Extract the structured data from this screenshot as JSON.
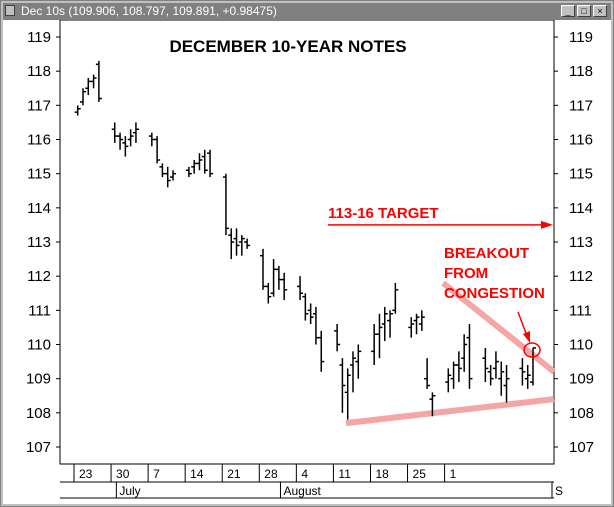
{
  "window": {
    "title": "Dec 10s (109.906, 108.797, 109.891, +0.98475)",
    "icon": "chart-window-icon",
    "buttons": [
      "minimize",
      "maximize",
      "close"
    ]
  },
  "chart_data": {
    "type": "ohlc",
    "title": "DECEMBER 10-YEAR NOTES",
    "y_ticks": [
      107,
      108,
      109,
      110,
      111,
      112,
      113,
      114,
      115,
      116,
      117,
      118,
      119
    ],
    "ylim": [
      106.6,
      119.5
    ],
    "x_ticks": [
      "23",
      "30",
      "7",
      "14",
      "21",
      "28",
      "4",
      "11",
      "18",
      "25",
      "1"
    ],
    "months": [
      "July",
      "August",
      "S"
    ],
    "grid": false,
    "bars": [
      {
        "x": "Jun 22",
        "open": 116.8,
        "high": 117.0,
        "low": 116.7,
        "close": 116.9
      },
      {
        "x": "Jun 23",
        "open": 117.1,
        "high": 117.5,
        "low": 117.0,
        "close": 117.4
      },
      {
        "x": "Jun 24",
        "open": 117.5,
        "high": 117.8,
        "low": 117.3,
        "close": 117.7
      },
      {
        "x": "Jun 25",
        "open": 117.7,
        "high": 117.9,
        "low": 117.5,
        "close": 117.8
      },
      {
        "x": "Jun 26",
        "open": 118.2,
        "high": 118.3,
        "low": 117.1,
        "close": 117.2
      },
      {
        "x": "Jun 29",
        "open": 116.3,
        "high": 116.5,
        "low": 115.9,
        "close": 116.1
      },
      {
        "x": "Jun 30",
        "open": 116.1,
        "high": 116.2,
        "low": 115.7,
        "close": 116.0
      },
      {
        "x": "Jul 1",
        "open": 115.9,
        "high": 116.1,
        "low": 115.5,
        "close": 115.8
      },
      {
        "x": "Jul 2",
        "open": 116.0,
        "high": 116.3,
        "low": 115.8,
        "close": 116.1
      },
      {
        "x": "Jul 3",
        "open": 116.2,
        "high": 116.5,
        "low": 115.9,
        "close": 116.3
      },
      {
        "x": "Jul 6",
        "open": 116.1,
        "high": 116.2,
        "low": 115.8,
        "close": 116.0
      },
      {
        "x": "Jul 7",
        "open": 116.0,
        "high": 116.1,
        "low": 115.3,
        "close": 115.4
      },
      {
        "x": "Jul 8",
        "open": 115.2,
        "high": 115.3,
        "low": 114.9,
        "close": 115.0
      },
      {
        "x": "Jul 9",
        "open": 115.0,
        "high": 115.2,
        "low": 114.6,
        "close": 114.8
      },
      {
        "x": "Jul 10",
        "open": 114.9,
        "high": 115.1,
        "low": 114.8,
        "close": 115.0
      },
      {
        "x": "Jul 13",
        "open": 115.1,
        "high": 115.2,
        "low": 114.9,
        "close": 115.0
      },
      {
        "x": "Jul 14",
        "open": 115.2,
        "high": 115.4,
        "low": 115.0,
        "close": 115.3
      },
      {
        "x": "Jul 15",
        "open": 115.3,
        "high": 115.6,
        "low": 115.1,
        "close": 115.4
      },
      {
        "x": "Jul 16",
        "open": 115.5,
        "high": 115.7,
        "low": 115.0,
        "close": 115.1
      },
      {
        "x": "Jul 17",
        "open": 115.6,
        "high": 115.7,
        "low": 114.9,
        "close": 115.0
      },
      {
        "x": "Jul 20",
        "open": 114.9,
        "high": 115.0,
        "low": 113.2,
        "close": 113.4
      },
      {
        "x": "Jul 21",
        "open": 113.2,
        "high": 113.4,
        "low": 112.5,
        "close": 113.0
      },
      {
        "x": "Jul 22",
        "open": 113.1,
        "high": 113.4,
        "low": 112.6,
        "close": 112.9
      },
      {
        "x": "Jul 23",
        "open": 113.0,
        "high": 113.2,
        "low": 112.6,
        "close": 113.1
      },
      {
        "x": "Jul 24",
        "open": 113.0,
        "high": 113.1,
        "low": 112.8,
        "close": 112.9
      },
      {
        "x": "Jul 27",
        "open": 112.6,
        "high": 112.8,
        "low": 111.6,
        "close": 111.7
      },
      {
        "x": "Jul 28",
        "open": 111.7,
        "high": 111.8,
        "low": 111.2,
        "close": 111.4
      },
      {
        "x": "Jul 29",
        "open": 111.5,
        "high": 112.5,
        "low": 111.4,
        "close": 112.2
      },
      {
        "x": "Jul 30",
        "open": 112.2,
        "high": 112.3,
        "low": 111.6,
        "close": 111.9
      },
      {
        "x": "Jul 31",
        "open": 111.9,
        "high": 112.1,
        "low": 111.3,
        "close": 111.6
      },
      {
        "x": "Aug 3",
        "open": 111.7,
        "high": 112.0,
        "low": 111.3,
        "close": 111.5
      },
      {
        "x": "Aug 4",
        "open": 111.4,
        "high": 111.5,
        "low": 110.7,
        "close": 110.9
      },
      {
        "x": "Aug 5",
        "open": 111.0,
        "high": 111.2,
        "low": 110.6,
        "close": 110.8
      },
      {
        "x": "Aug 6",
        "open": 110.9,
        "high": 111.1,
        "low": 110.0,
        "close": 110.2
      },
      {
        "x": "Aug 7",
        "open": 110.2,
        "high": 110.4,
        "low": 109.2,
        "close": 109.5
      },
      {
        "x": "Aug 10",
        "open": 110.4,
        "high": 110.6,
        "low": 109.8,
        "close": 110.0
      },
      {
        "x": "Aug 11",
        "open": 109.4,
        "high": 109.6,
        "low": 108.0,
        "close": 108.8
      },
      {
        "x": "Aug 12",
        "open": 108.6,
        "high": 109.3,
        "low": 107.8,
        "close": 109.1
      },
      {
        "x": "Aug 13",
        "open": 109.4,
        "high": 109.8,
        "low": 108.6,
        "close": 109.6
      },
      {
        "x": "Aug 14",
        "open": 109.5,
        "high": 110.0,
        "low": 109.0,
        "close": 109.8
      },
      {
        "x": "Aug 17",
        "open": 109.8,
        "high": 110.6,
        "low": 109.4,
        "close": 110.3
      },
      {
        "x": "Aug 18",
        "open": 110.3,
        "high": 110.9,
        "low": 109.6,
        "close": 110.5
      },
      {
        "x": "Aug 19",
        "open": 110.6,
        "high": 111.1,
        "low": 110.1,
        "close": 110.9
      },
      {
        "x": "Aug 20",
        "open": 110.7,
        "high": 111.0,
        "low": 110.2,
        "close": 110.9
      },
      {
        "x": "Aug 21",
        "open": 111.0,
        "high": 111.8,
        "low": 110.9,
        "close": 111.6
      },
      {
        "x": "Aug 24",
        "open": 110.5,
        "high": 110.8,
        "low": 110.2,
        "close": 110.6
      },
      {
        "x": "Aug 25",
        "open": 110.7,
        "high": 110.9,
        "low": 110.3,
        "close": 110.8
      },
      {
        "x": "Aug 26",
        "open": 110.6,
        "high": 111.0,
        "low": 110.4,
        "close": 110.8
      },
      {
        "x": "Aug 27",
        "open": 109.0,
        "high": 109.6,
        "low": 108.7,
        "close": 108.8
      },
      {
        "x": "Aug 28",
        "open": 108.4,
        "high": 108.6,
        "low": 107.9,
        "close": 108.5
      },
      {
        "x": "Aug 31",
        "open": 108.9,
        "high": 109.3,
        "low": 108.6,
        "close": 109.1
      },
      {
        "x": "Sep 1",
        "open": 109.0,
        "high": 109.5,
        "low": 108.7,
        "close": 109.4
      },
      {
        "x": "Sep 2",
        "open": 109.4,
        "high": 109.8,
        "low": 108.9,
        "close": 109.3
      },
      {
        "x": "Sep 3",
        "open": 109.6,
        "high": 110.3,
        "low": 109.2,
        "close": 110.0
      },
      {
        "x": "Sep 4",
        "open": 110.2,
        "high": 110.6,
        "low": 108.7,
        "close": 109.0
      },
      {
        "x": "Sep 7",
        "open": 109.6,
        "high": 109.9,
        "low": 108.9,
        "close": 109.3
      },
      {
        "x": "Sep 8",
        "open": 109.2,
        "high": 109.4,
        "low": 108.8,
        "close": 109.0
      },
      {
        "x": "Sep 9",
        "open": 109.3,
        "high": 109.8,
        "low": 109.0,
        "close": 109.5
      },
      {
        "x": "Sep 10",
        "open": 109.0,
        "high": 109.5,
        "low": 108.5,
        "close": 109.2
      },
      {
        "x": "Sep 11",
        "open": 108.8,
        "high": 109.4,
        "low": 108.3,
        "close": 109.0
      },
      {
        "x": "Sep 14",
        "open": 109.3,
        "high": 109.6,
        "low": 108.8,
        "close": 109.2
      },
      {
        "x": "Sep 15",
        "open": 109.0,
        "high": 109.4,
        "low": 108.7,
        "close": 109.1
      },
      {
        "x": "Sep 16",
        "open": 108.9,
        "high": 109.9,
        "low": 108.8,
        "close": 109.9
      }
    ],
    "trendlines": [
      {
        "name": "upper",
        "from": [
          109.5,
          111.8
        ],
        "to": [
          110.3,
          109.2
        ],
        "color": "#f4a6a6"
      },
      {
        "name": "lower",
        "from": [
          108.8,
          107.7
        ],
        "to": [
          110.3,
          108.4
        ],
        "color": "#f4a6a6"
      }
    ],
    "annotations": {
      "target": {
        "text": "113-16 TARGET",
        "level": 113.5,
        "color": "#ff0000"
      },
      "breakout": {
        "lines": [
          "BREAKOUT",
          "FROM",
          "CONGESTION"
        ],
        "color": "#ff0000"
      }
    },
    "colors": {
      "bars": "#000000",
      "annotation": "#ff0000",
      "trendline": "#f4a6a6",
      "plot_bg": "#ffffff"
    }
  }
}
